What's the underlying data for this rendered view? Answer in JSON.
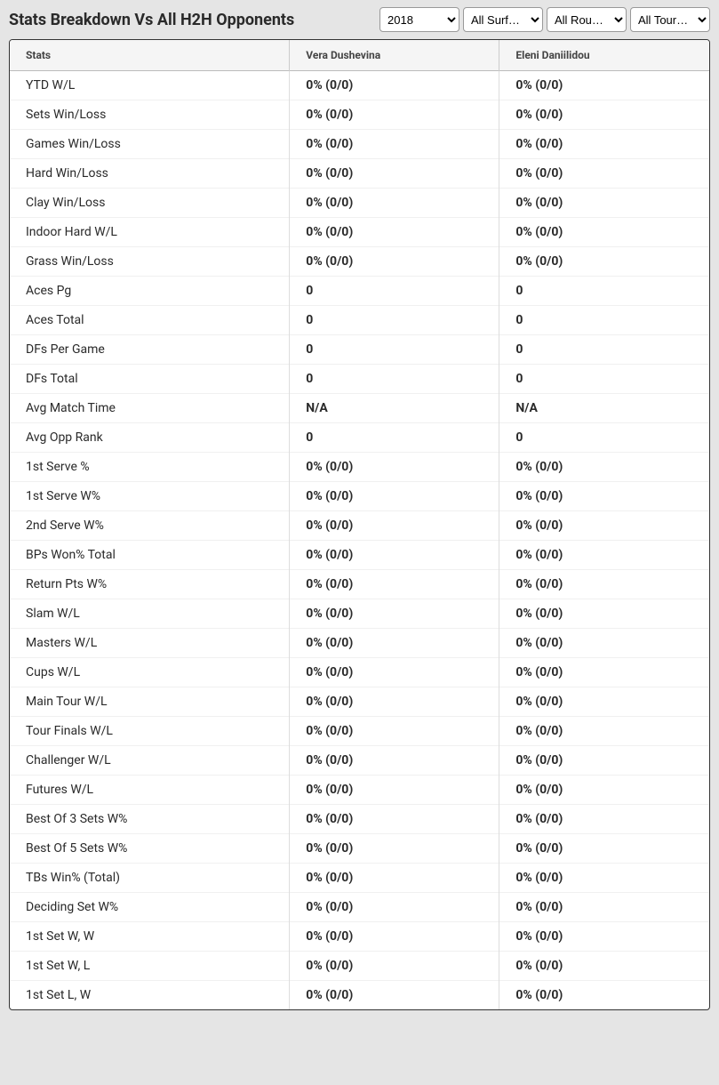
{
  "header": {
    "title": "Stats Breakdown Vs All H2H Opponents"
  },
  "filters": {
    "year": "2018",
    "surface": "All Surf…",
    "round": "All Rou…",
    "tournament": "All Tour…"
  },
  "table": {
    "columns": {
      "stats": "Stats",
      "player1": "Vera Dushevina",
      "player2": "Eleni Daniilidou"
    },
    "rows": [
      {
        "label": "YTD W/L",
        "p1": "0% (0/0)",
        "p2": "0% (0/0)"
      },
      {
        "label": "Sets Win/Loss",
        "p1": "0% (0/0)",
        "p2": "0% (0/0)"
      },
      {
        "label": "Games Win/Loss",
        "p1": "0% (0/0)",
        "p2": "0% (0/0)"
      },
      {
        "label": "Hard Win/Loss",
        "p1": "0% (0/0)",
        "p2": "0% (0/0)"
      },
      {
        "label": "Clay Win/Loss",
        "p1": "0% (0/0)",
        "p2": "0% (0/0)"
      },
      {
        "label": "Indoor Hard W/L",
        "p1": "0% (0/0)",
        "p2": "0% (0/0)"
      },
      {
        "label": "Grass Win/Loss",
        "p1": "0% (0/0)",
        "p2": "0% (0/0)"
      },
      {
        "label": "Aces Pg",
        "p1": "0",
        "p2": "0"
      },
      {
        "label": "Aces Total",
        "p1": "0",
        "p2": "0"
      },
      {
        "label": "DFs Per Game",
        "p1": "0",
        "p2": "0"
      },
      {
        "label": "DFs Total",
        "p1": "0",
        "p2": "0"
      },
      {
        "label": "Avg Match Time",
        "p1": "N/A",
        "p2": "N/A"
      },
      {
        "label": "Avg Opp Rank",
        "p1": "0",
        "p2": "0"
      },
      {
        "label": "1st Serve %",
        "p1": "0% (0/0)",
        "p2": "0% (0/0)"
      },
      {
        "label": "1st Serve W%",
        "p1": "0% (0/0)",
        "p2": "0% (0/0)"
      },
      {
        "label": "2nd Serve W%",
        "p1": "0% (0/0)",
        "p2": "0% (0/0)"
      },
      {
        "label": "BPs Won% Total",
        "p1": "0% (0/0)",
        "p2": "0% (0/0)"
      },
      {
        "label": "Return Pts W%",
        "p1": "0% (0/0)",
        "p2": "0% (0/0)"
      },
      {
        "label": "Slam W/L",
        "p1": "0% (0/0)",
        "p2": "0% (0/0)"
      },
      {
        "label": "Masters W/L",
        "p1": "0% (0/0)",
        "p2": "0% (0/0)"
      },
      {
        "label": "Cups W/L",
        "p1": "0% (0/0)",
        "p2": "0% (0/0)"
      },
      {
        "label": "Main Tour W/L",
        "p1": "0% (0/0)",
        "p2": "0% (0/0)"
      },
      {
        "label": "Tour Finals W/L",
        "p1": "0% (0/0)",
        "p2": "0% (0/0)"
      },
      {
        "label": "Challenger W/L",
        "p1": "0% (0/0)",
        "p2": "0% (0/0)"
      },
      {
        "label": "Futures W/L",
        "p1": "0% (0/0)",
        "p2": "0% (0/0)"
      },
      {
        "label": "Best Of 3 Sets W%",
        "p1": "0% (0/0)",
        "p2": "0% (0/0)"
      },
      {
        "label": "Best Of 5 Sets W%",
        "p1": "0% (0/0)",
        "p2": "0% (0/0)"
      },
      {
        "label": "TBs Win% (Total)",
        "p1": "0% (0/0)",
        "p2": "0% (0/0)"
      },
      {
        "label": "Deciding Set W%",
        "p1": "0% (0/0)",
        "p2": "0% (0/0)"
      },
      {
        "label": "1st Set W, W",
        "p1": "0% (0/0)",
        "p2": "0% (0/0)"
      },
      {
        "label": "1st Set W, L",
        "p1": "0% (0/0)",
        "p2": "0% (0/0)"
      },
      {
        "label": "1st Set L, W",
        "p1": "0% (0/0)",
        "p2": "0% (0/0)"
      }
    ]
  }
}
